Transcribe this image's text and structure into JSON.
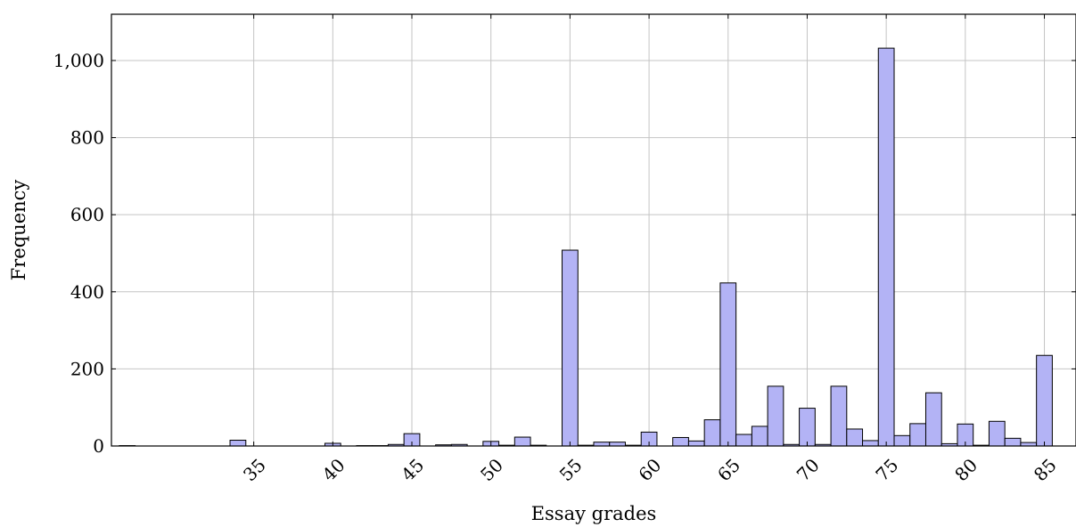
{
  "chart_data": {
    "type": "bar",
    "xlabel": "Essay grades",
    "ylabel": "Frequency",
    "xlim": [
      26,
      87
    ],
    "ylim": [
      0,
      1120
    ],
    "x_ticks": [
      35,
      40,
      45,
      50,
      55,
      60,
      65,
      70,
      75,
      80,
      85
    ],
    "y_ticks": [
      0,
      200,
      400,
      600,
      800,
      1000
    ],
    "y_tick_labels": [
      "0",
      "200",
      "400",
      "600",
      "800",
      "1,000"
    ],
    "grid": true,
    "bar_color": "#b3b3f5",
    "bar_edge_color": "#000000",
    "bin_width": 1,
    "x": [
      27,
      28,
      29,
      30,
      31,
      32,
      33,
      34,
      35,
      36,
      37,
      38,
      39,
      40,
      41,
      42,
      43,
      44,
      45,
      46,
      47,
      48,
      49,
      50,
      51,
      52,
      53,
      54,
      55,
      56,
      57,
      58,
      59,
      60,
      61,
      62,
      63,
      64,
      65,
      66,
      67,
      68,
      69,
      70,
      71,
      72,
      73,
      74,
      75,
      76,
      77,
      78,
      79,
      80,
      81,
      82,
      83,
      84,
      85
    ],
    "values": [
      1,
      0,
      0,
      0,
      0,
      0,
      0,
      15,
      0,
      0,
      0,
      0,
      0,
      7,
      0,
      1,
      1,
      4,
      32,
      0,
      3,
      4,
      0,
      12,
      2,
      23,
      2,
      0,
      508,
      2,
      10,
      10,
      2,
      36,
      0,
      22,
      13,
      68,
      423,
      30,
      51,
      155,
      4,
      98,
      4,
      155,
      44,
      14,
      1032,
      27,
      58,
      138,
      6,
      57,
      2,
      64,
      20,
      9,
      235
    ]
  }
}
